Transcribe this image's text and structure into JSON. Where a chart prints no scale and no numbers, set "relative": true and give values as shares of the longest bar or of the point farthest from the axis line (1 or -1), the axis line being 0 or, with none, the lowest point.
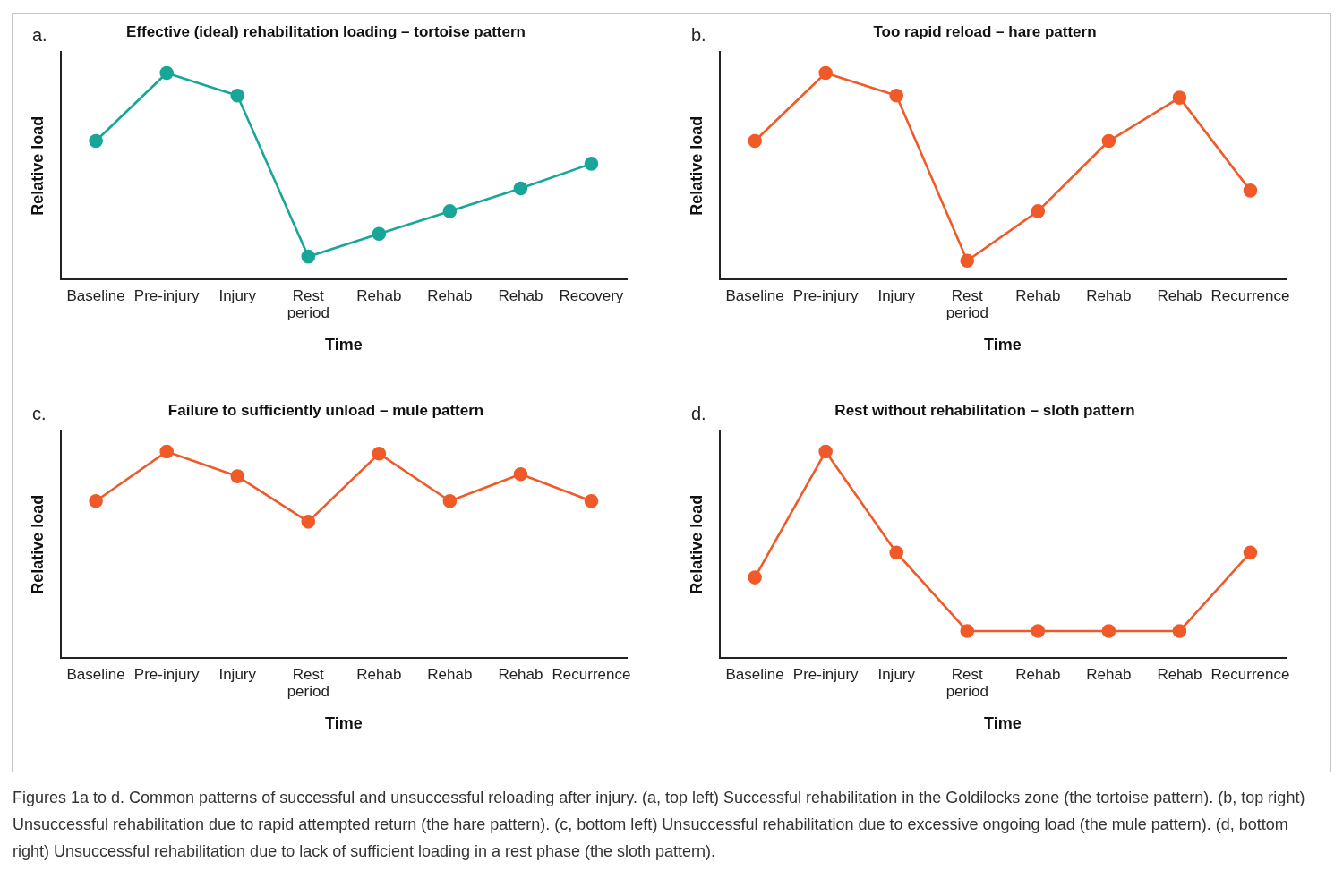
{
  "chart_data": [
    {
      "type": "line",
      "title": "Effective (ideal) rehabilitation loading – tortoise pattern",
      "xlabel": "Time",
      "ylabel": "Relative load",
      "categories": [
        "Baseline",
        "Pre-injury",
        "Injury",
        "Rest period",
        "Rehab",
        "Rehab",
        "Rehab",
        "Recovery"
      ],
      "values": [
        0.67,
        1,
        0.89,
        0.11,
        0.22,
        0.33,
        0.44,
        0.56
      ],
      "color": "#17a697",
      "relative": true,
      "marker": "circle",
      "annotations": [
        "a."
      ]
    },
    {
      "type": "line",
      "title": "Too rapid reload – hare pattern",
      "xlabel": "Time",
      "ylabel": "Relative load",
      "categories": [
        "Baseline",
        "Pre-injury",
        "Injury",
        "Rest period",
        "Rehab",
        "Rehab",
        "Rehab",
        "Recurrence"
      ],
      "values": [
        0.67,
        1,
        0.89,
        0.09,
        0.33,
        0.67,
        0.88,
        0.43
      ],
      "color": "#f05a28",
      "relative": true,
      "marker": "circle",
      "annotations": [
        "b."
      ]
    },
    {
      "type": "line",
      "title": "Failure to sufficiently unload – mule pattern",
      "xlabel": "Time",
      "ylabel": "Relative load",
      "categories": [
        "Baseline",
        "Pre-injury",
        "Injury",
        "Rest period",
        "Rehab",
        "Rehab",
        "Rehab",
        "Recurrence"
      ],
      "values": [
        0.76,
        1,
        0.88,
        0.66,
        0.99,
        0.76,
        0.89,
        0.76
      ],
      "color": "#f05a28",
      "relative": true,
      "marker": "circle",
      "annotations": [
        "c."
      ]
    },
    {
      "type": "line",
      "title": "Rest without rehabilitation – sloth pattern",
      "xlabel": "Time",
      "ylabel": "Relative load",
      "categories": [
        "Baseline",
        "Pre-injury",
        "Injury",
        "Rest period",
        "Rehab",
        "Rehab",
        "Rehab",
        "Recurrence"
      ],
      "values": [
        0.39,
        1,
        0.51,
        0.13,
        0.13,
        0.13,
        0.13,
        0.51
      ],
      "color": "#f05a28",
      "relative": true,
      "marker": "circle",
      "annotations": [
        "d.",
        "Figures 1a to d. Common patterns of successful and unsuccessful reloading after injury. (a, top left) Successful rehabilitation in the Goldilocks zone (the tortoise pattern). (b, top right) Unsuccessful rehabilitation due to rapid attempted return (the hare pattern). (c, bottom left) Unsuccessful rehabilitation due to excessive ongoing load (the mule pattern). (d, bottom right) Unsuccessful rehabilitation due to lack of sufficient loading in a rest phase (the sloth pattern)."
      ]
    }
  ]
}
